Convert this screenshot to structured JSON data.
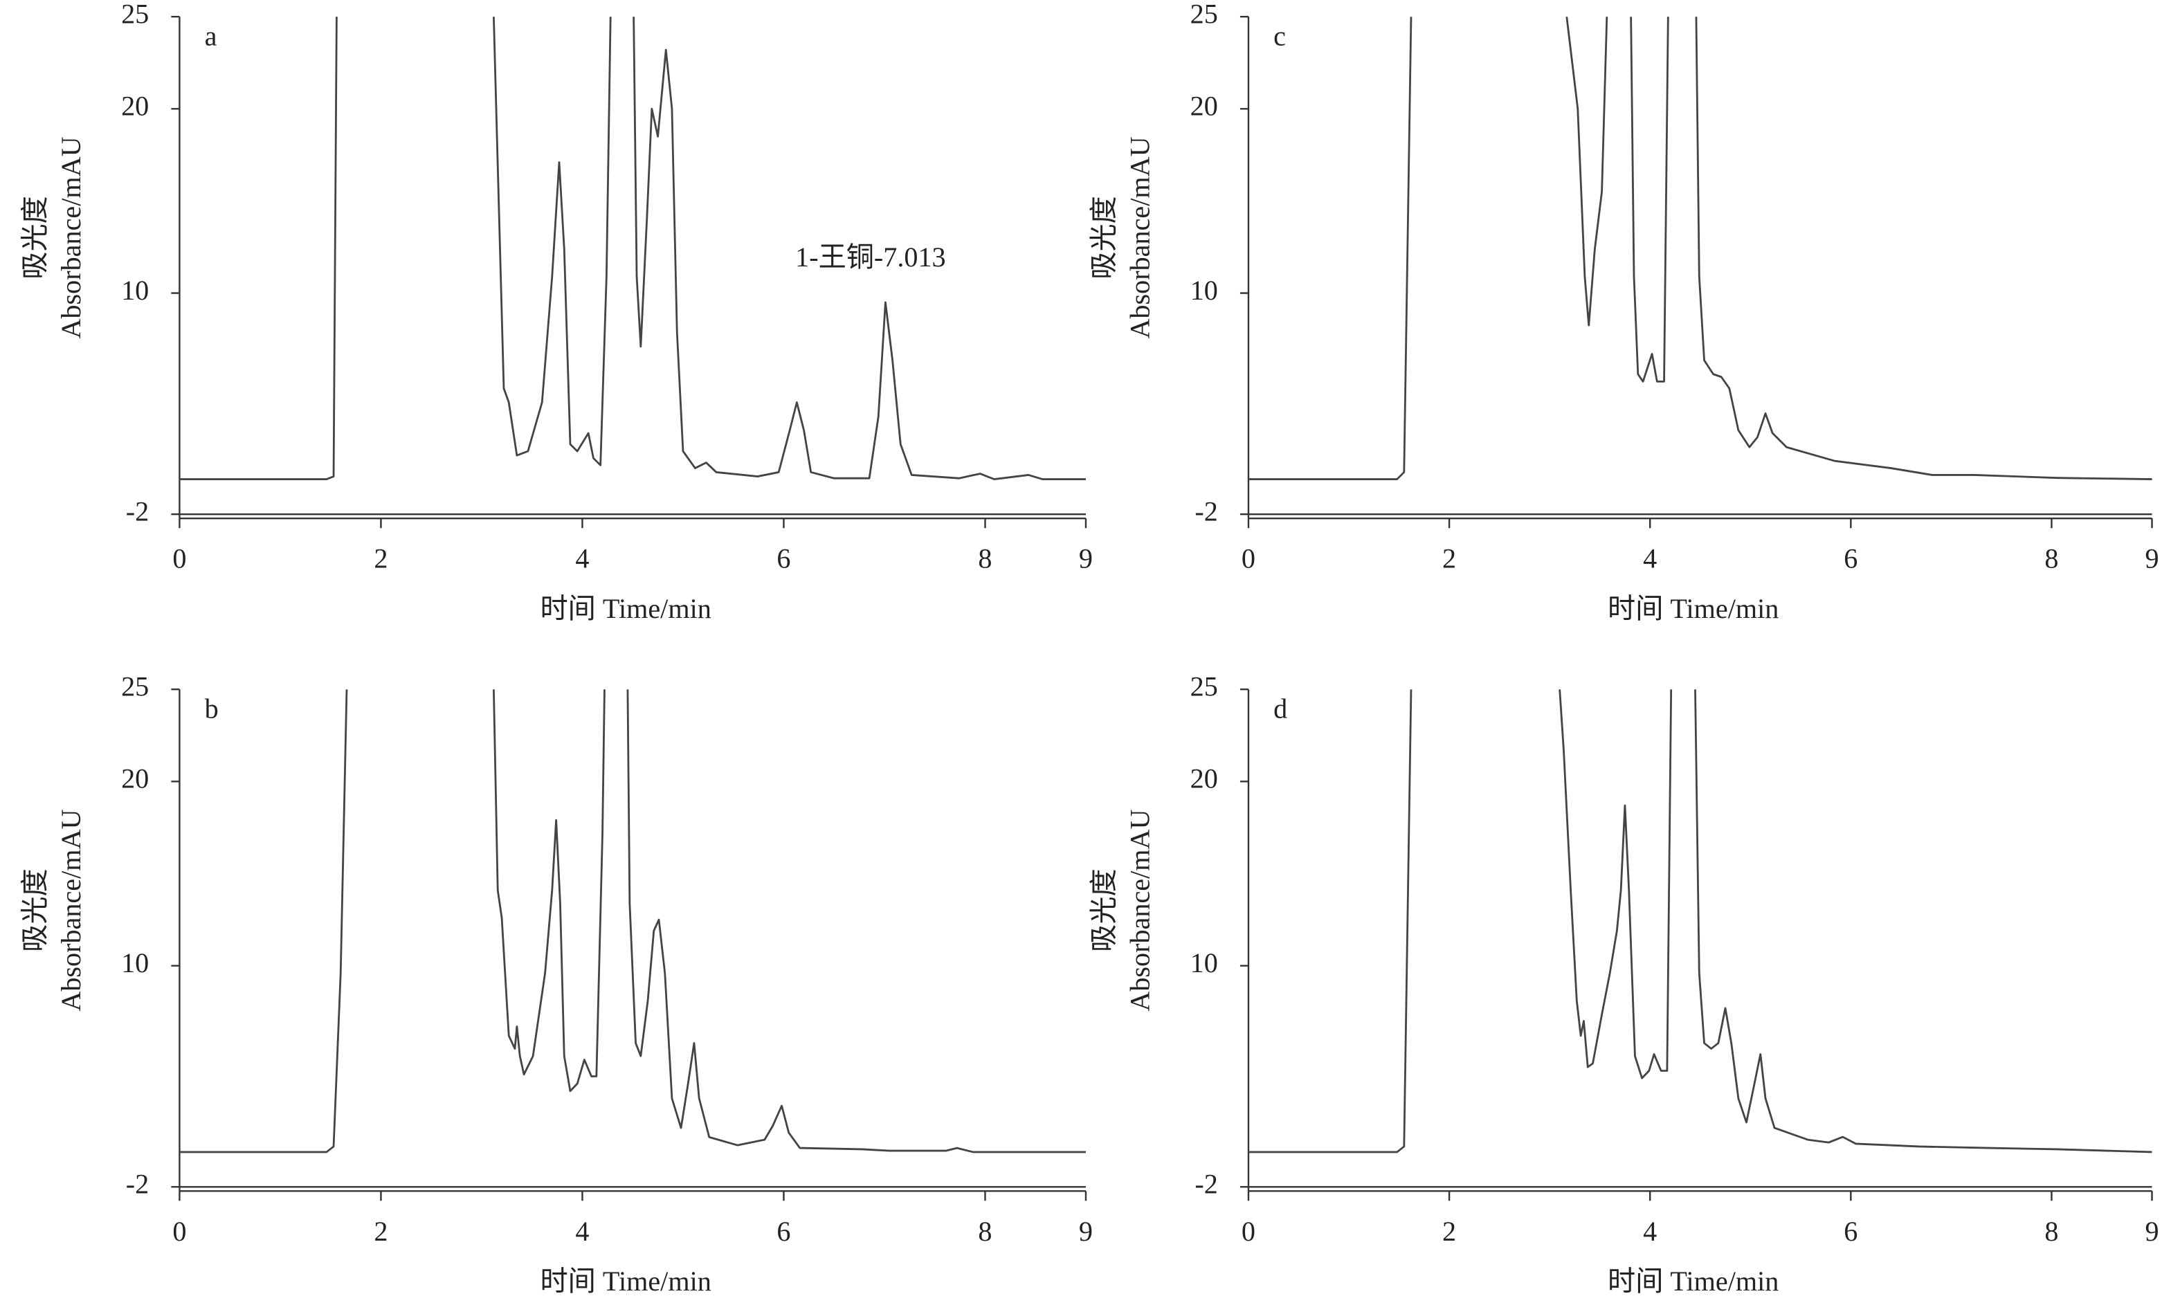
{
  "chart_data": [
    {
      "type": "line",
      "label": "a",
      "xlabel": "时间 Time/min",
      "ylabel": [
        "吸光度",
        "Absorbance/mAU"
      ],
      "annotation": "1-王铜-7.013",
      "xlim": [
        0,
        9
      ],
      "ylim": [
        -2,
        25
      ],
      "xticks": [
        0,
        2,
        4,
        6,
        8,
        9
      ],
      "yticks": [
        -2,
        10,
        20,
        25
      ],
      "x": [
        0,
        1.46,
        1.53,
        1.56,
        2.3,
        3.12,
        3.22,
        3.27,
        3.35,
        3.46,
        3.6,
        3.7,
        3.77,
        3.82,
        3.88,
        3.95,
        4.06,
        4.11,
        4.18,
        4.24,
        4.28,
        4.4,
        4.51,
        4.54,
        4.58,
        4.64,
        4.69,
        4.75,
        4.83,
        4.89,
        4.94,
        5.0,
        5.12,
        5.23,
        5.33,
        5.6,
        5.74,
        5.95,
        6.06,
        6.13,
        6.2,
        6.27,
        6.5,
        6.85,
        6.94,
        7.01,
        7.08,
        7.16,
        7.27,
        7.74,
        7.95,
        8.09,
        8.43,
        8.57,
        9
      ],
      "series": [
        {
          "color": "#444444",
          "values": [
            -0.1,
            -0.1,
            0.05,
            25,
            null,
            25,
            4.83,
            4.07,
            1.19,
            1.42,
            4.07,
            10.9,
            17.1,
            12.4,
            1.8,
            1.42,
            2.4,
            1.04,
            0.66,
            10.9,
            25,
            null,
            25,
            10.9,
            7.1,
            13.9,
            20.0,
            18.5,
            23.2,
            20.0,
            7.9,
            1.42,
            0.5,
            0.8,
            0.28,
            0.13,
            0.05,
            0.28,
            2.56,
            4.07,
            2.56,
            0.28,
            -0.05,
            -0.05,
            3.3,
            9.5,
            6.35,
            1.8,
            0.13,
            -0.05,
            0.2,
            -0.1,
            0.13,
            -0.1,
            -0.1
          ]
        }
      ]
    },
    {
      "type": "line",
      "label": "b",
      "xlabel": "时间 Time/min",
      "ylabel": [
        "吸光度",
        "Absorbance/mAU"
      ],
      "xlim": [
        0,
        9
      ],
      "ylim": [
        -2,
        25
      ],
      "xticks": [
        0,
        2,
        4,
        6,
        8,
        9
      ],
      "yticks": [
        -2,
        10,
        20,
        25
      ],
      "x": [
        0,
        1.46,
        1.53,
        1.6,
        1.66,
        2.4,
        3.12,
        3.16,
        3.2,
        3.27,
        3.33,
        3.35,
        3.38,
        3.42,
        3.51,
        3.63,
        3.7,
        3.74,
        3.78,
        3.82,
        3.88,
        3.95,
        4.02,
        4.09,
        4.14,
        4.2,
        4.22,
        4.33,
        4.45,
        4.47,
        4.53,
        4.58,
        4.65,
        4.71,
        4.76,
        4.82,
        4.89,
        4.98,
        5.05,
        5.11,
        5.16,
        5.26,
        5.54,
        5.81,
        5.89,
        5.98,
        6.05,
        6.16,
        6.78,
        7.05,
        7.61,
        7.72,
        7.88,
        9
      ],
      "series": [
        {
          "color": "#444444",
          "values": [
            -0.11,
            -0.11,
            0.19,
            9.6,
            25,
            null,
            25,
            14.1,
            12.6,
            6.2,
            5.5,
            6.7,
            5.1,
            4.1,
            5.1,
            9.6,
            14.1,
            17.9,
            13.4,
            5.1,
            3.2,
            3.6,
            4.9,
            4.0,
            4.0,
            17.2,
            25,
            null,
            25,
            13.4,
            5.8,
            5.1,
            8.1,
            11.9,
            12.5,
            9.6,
            2.8,
            1.2,
            3.6,
            5.8,
            2.8,
            0.7,
            0.26,
            0.56,
            1.3,
            2.4,
            0.94,
            0.11,
            0.04,
            -0.04,
            -0.04,
            0.11,
            -0.11,
            -0.11
          ]
        }
      ]
    },
    {
      "type": "line",
      "label": "c",
      "xlabel": "时间 Time/min",
      "ylabel": [
        "吸光度",
        "Absorbance/mAU"
      ],
      "xlim": [
        0,
        9
      ],
      "ylim": [
        -2,
        25
      ],
      "xticks": [
        0,
        2,
        4,
        6,
        8,
        9
      ],
      "yticks": [
        -2,
        10,
        20,
        25
      ],
      "x": [
        0,
        1.48,
        1.55,
        1.62,
        2.4,
        3.17,
        3.28,
        3.35,
        3.39,
        3.45,
        3.52,
        3.57,
        3.7,
        3.81,
        3.84,
        3.88,
        3.93,
        4.02,
        4.07,
        4.14,
        4.18,
        4.3,
        4.46,
        4.49,
        4.54,
        4.63,
        4.71,
        4.79,
        4.88,
        4.99,
        5.07,
        5.15,
        5.22,
        5.36,
        5.84,
        6.4,
        6.81,
        7.23,
        8.06,
        9
      ],
      "series": [
        {
          "color": "#444444",
          "values": [
            -0.1,
            -0.1,
            0.28,
            25,
            null,
            25,
            20,
            10.9,
            8.25,
            12.4,
            15.5,
            25,
            null,
            25,
            10.9,
            5.6,
            5.2,
            6.7,
            5.2,
            5.2,
            25,
            null,
            25,
            10.9,
            6.35,
            5.6,
            5.45,
            4.83,
            2.56,
            1.64,
            2.18,
            3.47,
            2.4,
            1.64,
            0.89,
            0.5,
            0.13,
            0.13,
            -0.03,
            -0.1
          ]
        }
      ]
    },
    {
      "type": "line",
      "label": "d",
      "xlabel": "时间 Time/min",
      "ylabel": [
        "吸光度",
        "Absorbance/mAU"
      ],
      "xlim": [
        0,
        9
      ],
      "ylim": [
        -2,
        25
      ],
      "xticks": [
        0,
        2,
        4,
        6,
        8,
        9
      ],
      "yticks": [
        -2,
        10,
        20,
        25
      ],
      "x": [
        0,
        1.48,
        1.55,
        1.62,
        2.4,
        3.1,
        3.14,
        3.21,
        3.27,
        3.31,
        3.34,
        3.38,
        3.43,
        3.52,
        3.6,
        3.67,
        3.71,
        3.75,
        3.79,
        3.85,
        3.92,
        3.99,
        4.04,
        4.11,
        4.17,
        4.21,
        4.33,
        4.45,
        4.49,
        4.54,
        4.61,
        4.68,
        4.75,
        4.81,
        4.88,
        4.96,
        5.04,
        5.1,
        5.15,
        5.24,
        5.57,
        5.78,
        5.92,
        6.05,
        6.68,
        7.37,
        8.06,
        9
      ],
      "series": [
        {
          "color": "#444444",
          "values": [
            -0.11,
            -0.11,
            0.19,
            25,
            null,
            25,
            21.7,
            14.1,
            8.1,
            6.2,
            7.0,
            4.5,
            4.7,
            7.35,
            9.6,
            11.9,
            14.1,
            18.7,
            14.1,
            5.1,
            3.9,
            4.3,
            5.2,
            4.3,
            4.3,
            25,
            null,
            25,
            9.6,
            5.8,
            5.5,
            5.8,
            7.7,
            5.8,
            2.8,
            1.5,
            3.6,
            5.2,
            2.8,
            1.2,
            0.56,
            0.41,
            0.71,
            0.34,
            0.19,
            0.11,
            0.04,
            -0.11
          ]
        }
      ]
    }
  ]
}
